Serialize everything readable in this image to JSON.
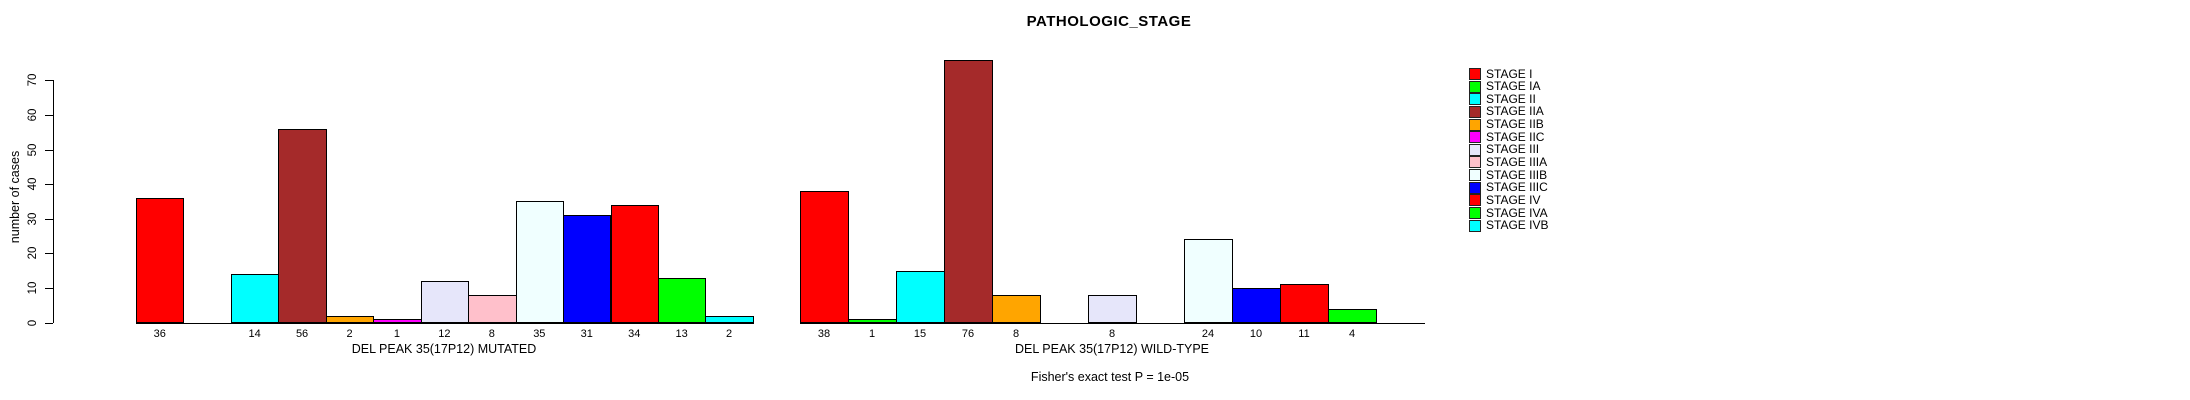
{
  "title": "PATHOLOGIC_STAGE",
  "ylabel": "number of cases",
  "annotation": "Fisher's exact test P = 1e-05",
  "chart_data": {
    "type": "bar",
    "title": "PATHOLOGIC_STAGE",
    "ylabel": "number of cases",
    "ylim": [
      0,
      70
    ],
    "yticks": [
      0,
      10,
      20,
      30,
      40,
      50,
      60,
      70
    ],
    "grid": false,
    "legend_position": "right",
    "categories": [
      "STAGE I",
      "STAGE IA",
      "STAGE II",
      "STAGE IIA",
      "STAGE IIB",
      "STAGE IIC",
      "STAGE III",
      "STAGE IIIA",
      "STAGE IIIB",
      "STAGE IIIC",
      "STAGE IV",
      "STAGE IVA",
      "STAGE IVB"
    ],
    "colors": [
      "#FF0000",
      "#00FF00",
      "#00FFFF",
      "#A52A2A",
      "#FFA500",
      "#FF00FF",
      "#E6E6FA",
      "#FFC0CB",
      "#F0FFFF",
      "#0000FF",
      "#FF0000",
      "#00FF00",
      "#00FFFF"
    ],
    "groups": [
      {
        "label": "DEL PEAK 35(17P12) MUTATED",
        "values": [
          36,
          0,
          14,
          56,
          2,
          1,
          12,
          8,
          35,
          31,
          34,
          13,
          2
        ]
      },
      {
        "label": "DEL PEAK 35(17P12) WILD-TYPE",
        "values": [
          38,
          1,
          15,
          76,
          8,
          0,
          8,
          0,
          24,
          10,
          11,
          4,
          0
        ]
      }
    ],
    "annotation": "Fisher's exact test P = 1e-05"
  }
}
